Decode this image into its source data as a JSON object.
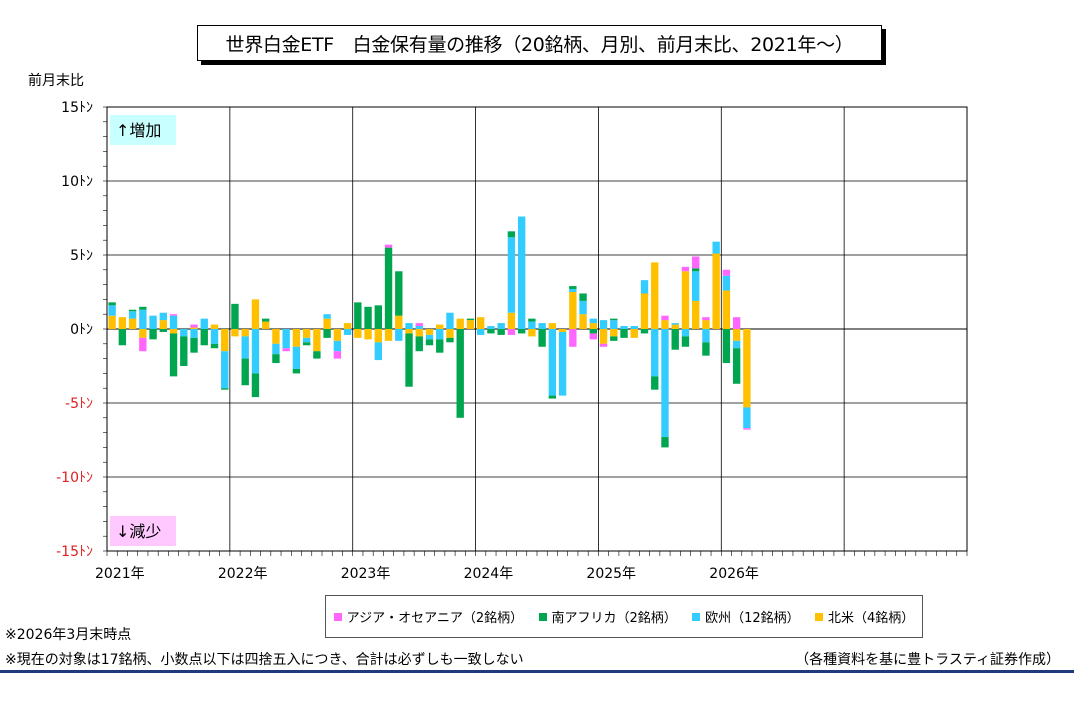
{
  "title": "世界白金ETF　白金保有量の推移（20銘柄、月別、前月末比、2021年〜）",
  "y_axis_title": "前月末比",
  "annotations": {
    "increase": "↑増加",
    "decrease": "↓減少"
  },
  "notes": {
    "as_of": "※2026年3月末時点",
    "target": "※現在の対象は17銘柄、小数点以下は四捨五入につき、合計は必ずしも一致しない",
    "source": "（各種資料を基に豊トラスティ証券作成）"
  },
  "colors": {
    "asia_oceania": "#ff66ff",
    "south_africa": "#00a550",
    "europe": "#33ccff",
    "north_america": "#ffc000",
    "positive_tick": "#000000",
    "negative_tick": "#e02020",
    "footer_line": "#1f3a7a",
    "annot_up_bg": "#c8ffff",
    "annot_down_bg": "#ffc8ff"
  },
  "chart_data": {
    "type": "bar",
    "stacked": true,
    "title": "世界白金ETF　白金保有量の推移（20銘柄、月別、前月末比、2021年〜）",
    "ylabel": "前月末比",
    "ylim": [
      -15,
      15
    ],
    "x_start": "2021-01",
    "x_end": "2027-12",
    "y_ticks": [
      {
        "value": 15,
        "label": "15ﾄﾝ"
      },
      {
        "value": 10,
        "label": "10ﾄﾝ"
      },
      {
        "value": 5,
        "label": "5ﾄﾝ"
      },
      {
        "value": 0,
        "label": "0ﾄﾝ"
      },
      {
        "value": -5,
        "label": "-5ﾄﾝ"
      },
      {
        "value": -10,
        "label": "-10ﾄﾝ"
      },
      {
        "value": -15,
        "label": "-15ﾄﾝ"
      }
    ],
    "x_ticks": [
      "2021年",
      "2022年",
      "2023年",
      "2024年",
      "2025年",
      "2026年"
    ],
    "grid": true,
    "legend_position": "bottom",
    "series": [
      {
        "name": "アジア・オセアニア（2銘柄）",
        "key": "asia_oceania"
      },
      {
        "name": "南アフリカ（2銘柄）",
        "key": "south_africa"
      },
      {
        "name": "欧州（12銘柄）",
        "key": "europe"
      },
      {
        "name": "北米（4銘柄）",
        "key": "north_america"
      }
    ],
    "months": [
      {
        "m": "2021-01",
        "na": 0.9,
        "eu": 0.7,
        "sa": 0.2
      },
      {
        "m": "2021-02",
        "na": 0.8,
        "sa": -1.1
      },
      {
        "m": "2021-03",
        "na": 0.7,
        "eu": 0.5,
        "sa": 0.1
      },
      {
        "m": "2021-04",
        "eu": 1.3,
        "sa": 0.2,
        "na": -0.6,
        "as": -0.9
      },
      {
        "m": "2021-05",
        "eu": 0.9,
        "sa": -0.7
      },
      {
        "m": "2021-06",
        "na": 0.6,
        "eu": 0.5,
        "sa": -0.2
      },
      {
        "m": "2021-07",
        "eu": 0.9,
        "as": 0.1,
        "na": -0.3,
        "sa": -2.9
      },
      {
        "m": "2021-08",
        "eu": -0.5,
        "sa": -2.0
      },
      {
        "m": "2021-09",
        "as": 0.2,
        "na": 0.1,
        "eu": -0.6,
        "sa": -1.0
      },
      {
        "m": "2021-10",
        "eu": 0.7,
        "sa": -1.1
      },
      {
        "m": "2021-11",
        "na": 0.3,
        "eu": -1.0,
        "sa": -0.3
      },
      {
        "m": "2021-12",
        "na": -1.5,
        "eu": -2.5,
        "sa": -0.1
      },
      {
        "m": "2022-01",
        "sa": 1.7,
        "na": -0.5
      },
      {
        "m": "2022-02",
        "na": -0.5,
        "eu": -1.5,
        "sa": -1.8
      },
      {
        "m": "2022-03",
        "na": 2.0,
        "eu": -3.0,
        "sa": -1.6
      },
      {
        "m": "2022-04",
        "na": 0.5,
        "sa": 0.2
      },
      {
        "m": "2022-05",
        "na": -1.0,
        "eu": -0.7,
        "sa": -0.6
      },
      {
        "m": "2022-06",
        "eu": -1.3,
        "as": -0.2
      },
      {
        "m": "2022-07",
        "eu": -1.5,
        "na": -1.2,
        "sa": -0.3
      },
      {
        "m": "2022-08",
        "na": -0.6,
        "eu": -0.3,
        "sa": -0.2
      },
      {
        "m": "2022-09",
        "na": -1.5,
        "sa": -0.5
      },
      {
        "m": "2022-10",
        "na": 0.7,
        "eu": 0.3,
        "sa": -0.6
      },
      {
        "m": "2022-11",
        "na": -0.8,
        "eu": -0.7,
        "as": -0.5
      },
      {
        "m": "2022-12",
        "na": 0.4,
        "eu": -0.4
      },
      {
        "m": "2023-01",
        "sa": 1.8,
        "na": -0.6
      },
      {
        "m": "2023-02",
        "sa": 1.5,
        "na": -0.7
      },
      {
        "m": "2023-03",
        "sa": 1.6,
        "na": -0.9,
        "eu": -1.2
      },
      {
        "m": "2023-04",
        "sa": 5.5,
        "as": 0.2,
        "na": -0.8
      },
      {
        "m": "2023-05",
        "na": 0.9,
        "sa": 3.0,
        "eu": -0.8
      },
      {
        "m": "2023-06",
        "eu": 0.4,
        "na": -0.3,
        "sa": -3.6
      },
      {
        "m": "2023-07",
        "eu": 0.2,
        "as": 0.2,
        "na": -0.5,
        "sa": -1.0
      },
      {
        "m": "2023-08",
        "na": -0.4,
        "eu": -0.3,
        "sa": -0.4
      },
      {
        "m": "2023-09",
        "na": 0.3,
        "eu": -0.7,
        "sa": -0.9
      },
      {
        "m": "2023-10",
        "eu": 1.1,
        "na": -0.6,
        "sa": -0.3
      },
      {
        "m": "2023-11",
        "na": 0.7,
        "sa": -6.0
      },
      {
        "m": "2023-12",
        "na": 0.6,
        "sa": 0.1
      },
      {
        "m": "2024-01",
        "na": 0.8,
        "eu": -0.4
      },
      {
        "m": "2024-02",
        "eu": 0.2,
        "sa": -0.3
      },
      {
        "m": "2024-03",
        "eu": 0.4,
        "sa": -0.4
      },
      {
        "m": "2024-04",
        "na": 1.1,
        "eu": 5.1,
        "sa": 0.4,
        "as": -0.4
      },
      {
        "m": "2024-05",
        "eu": 7.6,
        "sa": -0.3
      },
      {
        "m": "2024-06",
        "na": -0.5,
        "eu": 0.5,
        "sa": 0.2
      },
      {
        "m": "2024-07",
        "eu": 0.4,
        "sa": -1.2
      },
      {
        "m": "2024-08",
        "na": 0.4,
        "eu": -4.5,
        "sa": -0.2
      },
      {
        "m": "2024-09",
        "eu": -4.3,
        "na": -0.2
      },
      {
        "m": "2024-10",
        "na": 2.5,
        "eu": 0.2,
        "sa": 0.2,
        "as": -1.2
      },
      {
        "m": "2024-11",
        "na": 1.0,
        "eu": 0.9,
        "sa": 0.5
      },
      {
        "m": "2024-12",
        "na": 0.4,
        "eu": 0.3,
        "as": -0.4,
        "sa": -0.3
      },
      {
        "m": "2025-01",
        "eu": 0.6,
        "na": -1.0,
        "as": -0.2
      },
      {
        "m": "2025-02",
        "eu": 0.6,
        "sa": 0.1,
        "na": -0.5,
        "sa2": -0.3
      },
      {
        "m": "2025-03",
        "eu": 0.2,
        "sa": -0.6
      },
      {
        "m": "2025-04",
        "eu": 0.2,
        "na": -0.6
      },
      {
        "m": "2025-05",
        "na": 2.4,
        "eu": 0.9,
        "sa": -0.3
      },
      {
        "m": "2025-06",
        "na": 4.5,
        "eu": -3.2,
        "sa": -0.9
      },
      {
        "m": "2025-07",
        "na": 0.6,
        "as": 0.3,
        "eu": -7.3,
        "sa": -0.7
      },
      {
        "m": "2025-08",
        "na": 0.3,
        "eu": 0.1,
        "sa": -1.4
      },
      {
        "m": "2025-09",
        "na": 3.9,
        "as": 0.3,
        "eu": -0.5,
        "sa": -0.7
      },
      {
        "m": "2025-10",
        "na": 1.9,
        "eu": 2.0,
        "sa": 0.2,
        "as": 0.8
      },
      {
        "m": "2025-11",
        "na": 0.6,
        "as": 0.2,
        "eu": -0.9,
        "sa": -0.9
      },
      {
        "m": "2025-12",
        "na": 5.1,
        "eu": 0.8
      },
      {
        "m": "2026-01",
        "na": 2.6,
        "eu": 1.0,
        "as": 0.4,
        "sa": -2.3
      },
      {
        "m": "2026-02",
        "as": 0.8,
        "na": -0.8,
        "eu": -0.5,
        "sa": -2.4
      },
      {
        "m": "2026-03",
        "na": -5.3,
        "eu": -1.4,
        "as": -0.1
      }
    ]
  }
}
